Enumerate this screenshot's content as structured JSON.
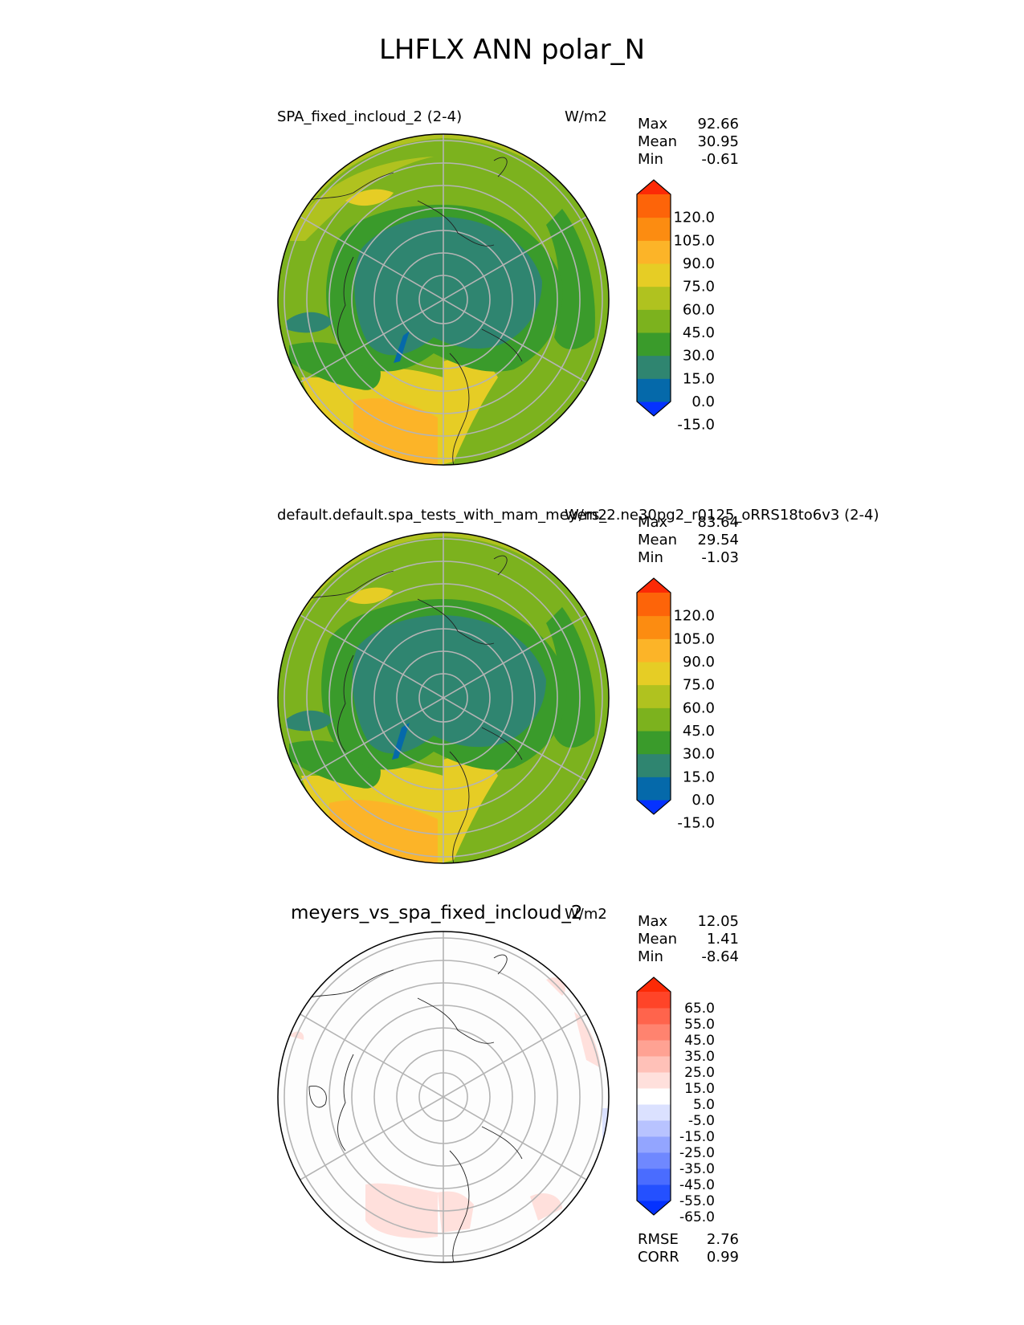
{
  "figure_title": "LHFLX ANN polar_N",
  "panels": [
    {
      "title_left": "SPA_fixed_incloud_2 (2-4)",
      "units": "W/m2",
      "stats": {
        "max_label": "Max",
        "max": "92.66",
        "mean_label": "Mean",
        "mean": "30.95",
        "min_label": "Min",
        "min": "-0.61"
      },
      "colorbar_ticks": [
        "120.0",
        "105.0",
        "90.0",
        "75.0",
        "60.0",
        "45.0",
        "30.0",
        "15.0",
        "0.0",
        "-15.0"
      ],
      "colors": [
        "#0532ff",
        "#0569aa",
        "#2f8570",
        "#3a9b2b",
        "#7cb21e",
        "#b0c21f",
        "#e6cd25",
        "#fcb428",
        "#fc8c11",
        "#fd6409",
        "#fc2a06"
      ]
    },
    {
      "title_left": "default.default.spa_tests_with_mam_meyers_2.ne30pg2_r0125_oRRS18to6v3 (2-4)",
      "units": "W/m2",
      "stats": {
        "max_label": "Max",
        "max": "83.64",
        "mean_label": "Mean",
        "mean": "29.54",
        "min_label": "Min",
        "min": "-1.03"
      },
      "colorbar_ticks": [
        "120.0",
        "105.0",
        "90.0",
        "75.0",
        "60.0",
        "45.0",
        "30.0",
        "15.0",
        "0.0",
        "-15.0"
      ],
      "colors": [
        "#0532ff",
        "#0569aa",
        "#2f8570",
        "#3a9b2b",
        "#7cb21e",
        "#b0c21f",
        "#e6cd25",
        "#fcb428",
        "#fc8c11",
        "#fd6409",
        "#fc2a06"
      ]
    },
    {
      "title_center": "meyers_vs_spa_fixed_incloud_2",
      "units": "W/m2",
      "stats": {
        "max_label": "Max",
        "max": "12.05",
        "mean_label": "Mean",
        "mean": "1.41",
        "min_label": "Min",
        "min": "-8.64"
      },
      "colorbar_ticks": [
        "65.0",
        "55.0",
        "45.0",
        "35.0",
        "25.0",
        "15.0",
        "5.0",
        "-5.0",
        "-15.0",
        "-25.0",
        "-35.0",
        "-45.0",
        "-55.0",
        "-65.0"
      ],
      "colors": [
        "#0532ff",
        "#2450ff",
        "#4a6cff",
        "#6f88ff",
        "#93a5ff",
        "#b8c3ff",
        "#dbe1ff",
        "#ffffff",
        "#ffe0dc",
        "#ffc1b8",
        "#ffa293",
        "#ff836f",
        "#ff644c",
        "#ff4428",
        "#fc2a06"
      ],
      "metrics": {
        "rmse_label": "RMSE",
        "rmse": "2.76",
        "corr_label": "CORR",
        "corr": "0.99"
      }
    }
  ]
}
